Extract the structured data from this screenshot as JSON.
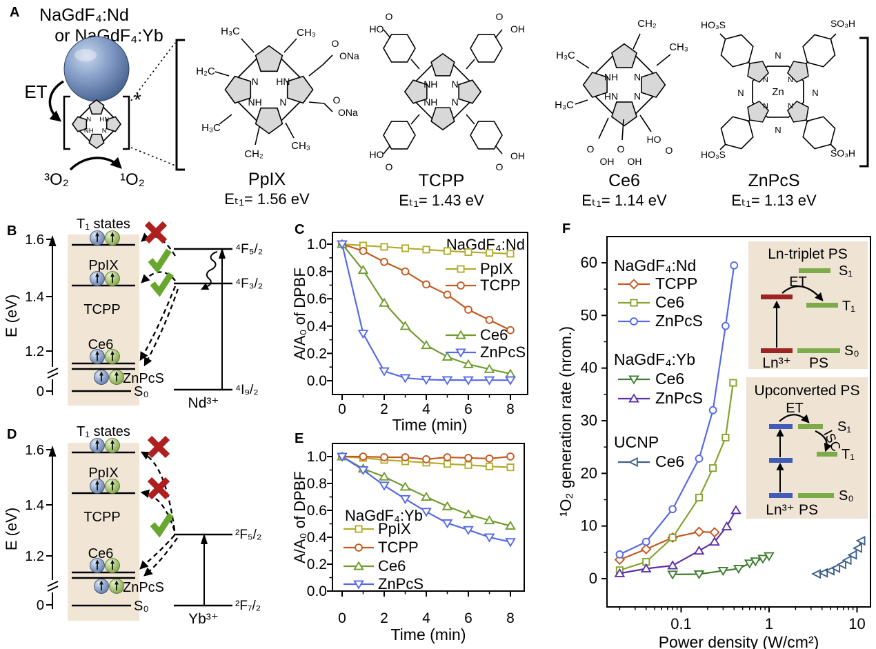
{
  "figure": {
    "panel_labels": {
      "a": "A",
      "b": "B",
      "c": "C",
      "d": "D",
      "e": "E",
      "f": "F"
    }
  },
  "colors": {
    "tan_box": "#f1e5d6",
    "inset_bg": "#efe3d4",
    "level_maroon": "#9e2424",
    "level_green": "#7cab49",
    "level_blue": "#3f5db8",
    "check_green": "#68a72e",
    "cross_red": "#b01f1f",
    "sphere_blue": "#7b93c2",
    "electron_green": "#a6c56f"
  },
  "panel_a": {
    "np_title1": "NaGdF₄:Nd",
    "np_title2": "or NaGdF₄:Yb",
    "et": "ET",
    "o2_triplet": "³O₂",
    "o2_singlet": "¹O₂",
    "asterisk": "*",
    "sketch_ring_labels": [
      "N",
      "HN",
      "NH",
      "N"
    ],
    "structures": [
      {
        "name": "PpIX",
        "energy": "Eₜ₁= 1.56 eV",
        "ring_labels": [
          "N",
          "HN",
          "NH",
          "N"
        ],
        "substituents": [
          "H₃C",
          "CH₃",
          "O",
          "ONa",
          "O",
          "ONa",
          "H₂C",
          "H₃C",
          "CH₂",
          "CH₃"
        ]
      },
      {
        "name": "TCPP",
        "energy": "Eₜ₁= 1.43 eV",
        "ring_labels": [
          "NH",
          "N",
          "NH",
          "N"
        ],
        "substituents": [
          "O",
          "OH",
          "O",
          "OH",
          "HO",
          "O",
          "HO",
          "O"
        ]
      },
      {
        "name": "Ce6",
        "energy": "Eₜ₁= 1.14 eV",
        "ring_labels": [
          "NH",
          "N",
          "HN",
          "N"
        ],
        "substituents": [
          "CH₂",
          "CH₃",
          "H₃C",
          "H₃C",
          "O",
          "OH",
          "O",
          "OH",
          "HO",
          "O"
        ]
      },
      {
        "name": "ZnPcS",
        "energy": "Eₜ₁= 1.13 eV",
        "center": "Zn",
        "ring_labels": [
          "N",
          "N",
          "N",
          "N"
        ],
        "bridge_labels": [
          "N",
          "N",
          "N",
          "N"
        ],
        "substituents": [
          "SO₃H",
          "HO₃S",
          "HO₃S",
          "SO₃H"
        ]
      }
    ]
  },
  "panel_b": {
    "axis_label": "E (eV)",
    "yticks": [
      "0",
      "1.2",
      "1.4",
      "1.6"
    ],
    "box_title": "T₁ states",
    "ps": {
      "pp": "PpIX",
      "tcpp": "TCPP",
      "ce6": "Ce6",
      "znpcs": "ZnPcS",
      "s0": "S₀"
    },
    "ion": "Nd³⁺",
    "levels": {
      "top": "⁴F₅/₂",
      "mid": "⁴F₃/₂",
      "ground": "⁴I₉/₂"
    }
  },
  "panel_d": {
    "axis_label": "E (eV)",
    "yticks": [
      "0",
      "1.2",
      "1.4",
      "1.6"
    ],
    "box_title": "T₁ states",
    "ps": {
      "pp": "PpIX",
      "tcpp": "TCPP",
      "ce6": "Ce6",
      "znpcs": "ZnPcS",
      "s0": "S₀"
    },
    "ion": "Yb³⁺",
    "levels": {
      "top": "²F₅/₂",
      "ground": "²F₇/₂"
    }
  },
  "panel_f": {
    "legend_groups": [
      {
        "title": "NaGdF₄:Nd",
        "items": [
          "TCPP",
          "Ce6",
          "ZnPcS"
        ]
      },
      {
        "title": "NaGdF₄:Yb",
        "items": [
          "Ce6",
          "ZnPcS"
        ]
      },
      {
        "title": "UCNP",
        "items": [
          "Ce6"
        ]
      }
    ],
    "inset_top": {
      "title": "Ln-triplet PS",
      "et": "ET",
      "s1": "S₁",
      "t1": "T₁",
      "s0": "S₀",
      "ion": "Ln³⁺",
      "ps": "PS"
    },
    "inset_bottom": {
      "title": "Upconverted PS",
      "et": "ET",
      "isc": "ISC",
      "s1": "S₁",
      "t1": "T₁",
      "s0": "S₀",
      "ion": "Ln³⁺",
      "ps": "PS"
    }
  },
  "chart_data": [
    {
      "id": "C",
      "type": "line",
      "title": "NaGdF₄:Nd",
      "xlabel": "Time (min)",
      "ylabel": "A/A₀ of DPBF",
      "x": [
        0,
        1,
        2,
        3,
        4,
        5,
        6,
        7,
        8
      ],
      "xlim": [
        -0.35,
        8.45
      ],
      "ylim": [
        -0.1,
        1.09
      ],
      "xticks": [
        0,
        2,
        4,
        6,
        8
      ],
      "yticks": [
        0,
        0.2,
        0.4,
        0.6,
        0.8,
        1
      ],
      "grid": false,
      "legend_position": "inside-right",
      "series": [
        {
          "name": "PpIX",
          "color": "#b2ac2c",
          "marker": "square",
          "values": [
            1.0,
            0.99,
            0.98,
            0.97,
            0.96,
            0.95,
            0.942,
            0.936,
            0.93
          ]
        },
        {
          "name": "TCPP",
          "color": "#c3581f",
          "marker": "circle",
          "values": [
            1.0,
            0.95,
            0.87,
            0.8,
            0.705,
            0.63,
            0.52,
            0.445,
            0.37
          ]
        },
        {
          "name": "Ce6",
          "color": "#6f9b2d",
          "marker": "triangle-up",
          "values": [
            1.0,
            0.81,
            0.57,
            0.4,
            0.26,
            0.175,
            0.12,
            0.085,
            0.05
          ]
        },
        {
          "name": "ZnPcS",
          "color": "#5569e8",
          "marker": "triangle-down",
          "values": [
            1.0,
            0.345,
            0.07,
            0.02,
            0.008,
            0.005,
            0.004,
            0.004,
            0.004
          ]
        }
      ]
    },
    {
      "id": "E",
      "type": "line",
      "title": "NaGdF₄:Yb",
      "xlabel": "Time (min)",
      "ylabel": "A/A₀ of DPBF",
      "x": [
        0,
        1,
        2,
        3,
        4,
        5,
        6,
        7,
        8
      ],
      "xlim": [
        -0.35,
        8.45
      ],
      "ylim": [
        -0.1,
        1.09
      ],
      "xticks": [
        0,
        2,
        4,
        6,
        8
      ],
      "yticks": [
        0,
        0.2,
        0.4,
        0.6,
        0.8,
        1
      ],
      "grid": false,
      "legend_position": "inside-left",
      "series": [
        {
          "name": "PpIX",
          "color": "#b2ac2c",
          "marker": "square",
          "values": [
            1.0,
            0.99,
            0.975,
            0.965,
            0.955,
            0.945,
            0.937,
            0.927,
            0.92
          ]
        },
        {
          "name": "TCPP",
          "color": "#c3581f",
          "marker": "circle",
          "values": [
            1.0,
            1.0,
            0.995,
            0.995,
            0.98,
            0.995,
            0.99,
            0.985,
            1.0
          ]
        },
        {
          "name": "Ce6",
          "color": "#6f9b2d",
          "marker": "triangle-up",
          "values": [
            1.0,
            0.91,
            0.85,
            0.775,
            0.7,
            0.63,
            0.57,
            0.525,
            0.485
          ]
        },
        {
          "name": "ZnPcS",
          "color": "#5569e8",
          "marker": "triangle-down",
          "values": [
            1.0,
            0.9,
            0.785,
            0.685,
            0.59,
            0.505,
            0.455,
            0.4,
            0.365
          ]
        }
      ]
    },
    {
      "id": "F",
      "type": "scatter-line",
      "xscale": "log",
      "xlabel": "Power density (W/cm²)",
      "ylabel": "¹O₂ generation rate (nrom.)",
      "xlim": [
        0.014,
        14.5
      ],
      "ylim": [
        -5.5,
        65
      ],
      "xticks": [
        0.1,
        1,
        10
      ],
      "xtick_labels": [
        "0.1",
        "1",
        "10"
      ],
      "yticks": [
        0,
        10,
        20,
        30,
        40,
        50,
        60
      ],
      "grid": false,
      "legend_position": "inside-left",
      "series": [
        {
          "name": "TCPP",
          "group": "NaGdF₄:Nd",
          "color": "#c3581f",
          "marker": "diamond",
          "points": [
            [
              0.02,
              3.6
            ],
            [
              0.04,
              5.6
            ],
            [
              0.08,
              7.8
            ],
            [
              0.16,
              8.9
            ],
            [
              0.24,
              8.8
            ]
          ]
        },
        {
          "name": "Ce6",
          "group": "NaGdF₄:Nd",
          "color": "#84a32b",
          "marker": "square",
          "points": [
            [
              0.02,
              1.6
            ],
            [
              0.04,
              3.2
            ],
            [
              0.08,
              7.8
            ],
            [
              0.16,
              15.4
            ],
            [
              0.23,
              21.0
            ],
            [
              0.32,
              26.8
            ],
            [
              0.39,
              37.2
            ]
          ]
        },
        {
          "name": "ZnPcS",
          "group": "NaGdF₄:Nd",
          "color": "#5569e8",
          "marker": "circle",
          "points": [
            [
              0.02,
              4.6
            ],
            [
              0.04,
              7.0
            ],
            [
              0.08,
              13.2
            ],
            [
              0.16,
              22.8
            ],
            [
              0.23,
              32.0
            ],
            [
              0.32,
              48.0
            ],
            [
              0.4,
              59.5
            ]
          ]
        },
        {
          "name": "Ce6",
          "group": "NaGdF₄:Yb",
          "color": "#3e7d2e",
          "marker": "triangle-down",
          "points": [
            [
              0.08,
              0.8
            ],
            [
              0.16,
              0.85
            ],
            [
              0.3,
              1.5
            ],
            [
              0.45,
              1.9
            ],
            [
              0.6,
              2.9
            ],
            [
              0.7,
              3.3
            ],
            [
              0.85,
              3.8
            ],
            [
              1.0,
              4.3
            ]
          ]
        },
        {
          "name": "ZnPcS",
          "group": "NaGdF₄:Yb",
          "color": "#5b2fa8",
          "marker": "triangle-up",
          "points": [
            [
              0.02,
              1.0
            ],
            [
              0.04,
              1.9
            ],
            [
              0.08,
              2.5
            ],
            [
              0.16,
              5.3
            ],
            [
              0.24,
              7.0
            ],
            [
              0.33,
              9.9
            ],
            [
              0.42,
              13.0
            ]
          ]
        },
        {
          "name": "Ce6",
          "group": "UCNP",
          "color": "#3d5f8a",
          "marker": "triangle-left",
          "points": [
            [
              3.5,
              0.9
            ],
            [
              4.2,
              1.1
            ],
            [
              5.0,
              1.5
            ],
            [
              5.8,
              2.0
            ],
            [
              6.8,
              2.7
            ],
            [
              7.8,
              3.5
            ],
            [
              9.0,
              4.5
            ],
            [
              10.3,
              5.8
            ],
            [
              11.2,
              7.2
            ]
          ]
        }
      ]
    }
  ]
}
